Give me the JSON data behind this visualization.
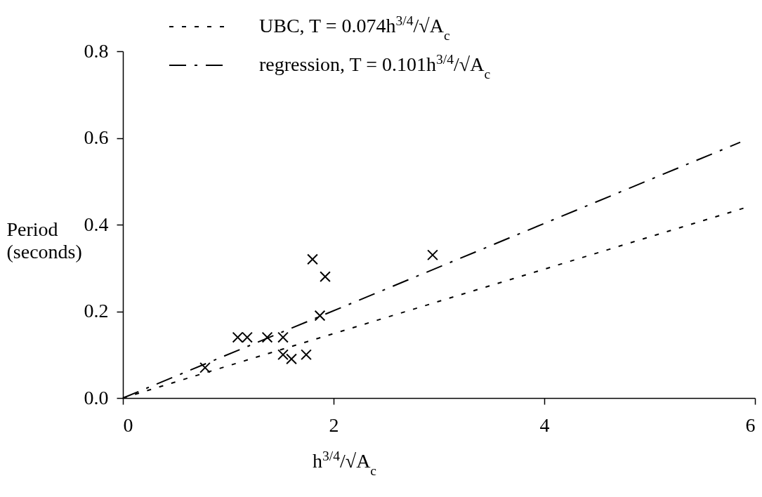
{
  "chart_data": {
    "type": "scatter",
    "xlabel": "h$^{3/4}$/√A$_{c}$",
    "ylabel": "Period (seconds)",
    "xlim": [
      0,
      6
    ],
    "xticks": [
      0,
      2,
      4,
      6
    ],
    "ylim": [
      0,
      0.8
    ],
    "yticks": [
      {
        "value": 0,
        "label": "0.0"
      },
      0.2,
      0.4,
      0.6,
      0.8
    ],
    "legend": "top",
    "series": [
      {
        "color": "#000000",
        "marker": "cross",
        "x": [
          0.78,
          1.09,
          1.18,
          1.37,
          1.52,
          1.52,
          1.6,
          1.74,
          1.8,
          1.92,
          1.87,
          2.94
        ],
        "values": [
          0.07,
          0.14,
          0.14,
          0.14,
          0.14,
          0.1,
          0.09,
          0.1,
          0.32,
          0.28,
          0.19,
          0.33
        ]
      },
      {
        "type": "line",
        "name": "UBC, T = 0.074h$^{3/4}$/√A$_{c}$",
        "color": "#000000",
        "line_style": "dotted",
        "x": [
          0,
          5.92
        ],
        "values": [
          0,
          0.44
        ]
      },
      {
        "type": "line",
        "name": "regression, T = 0.101h$^{3/4}$/√A$_{c}$",
        "color": "#000000",
        "line_style": "dashed",
        "x": [
          0,
          5.86
        ],
        "values": [
          0,
          0.59
        ]
      }
    ]
  }
}
